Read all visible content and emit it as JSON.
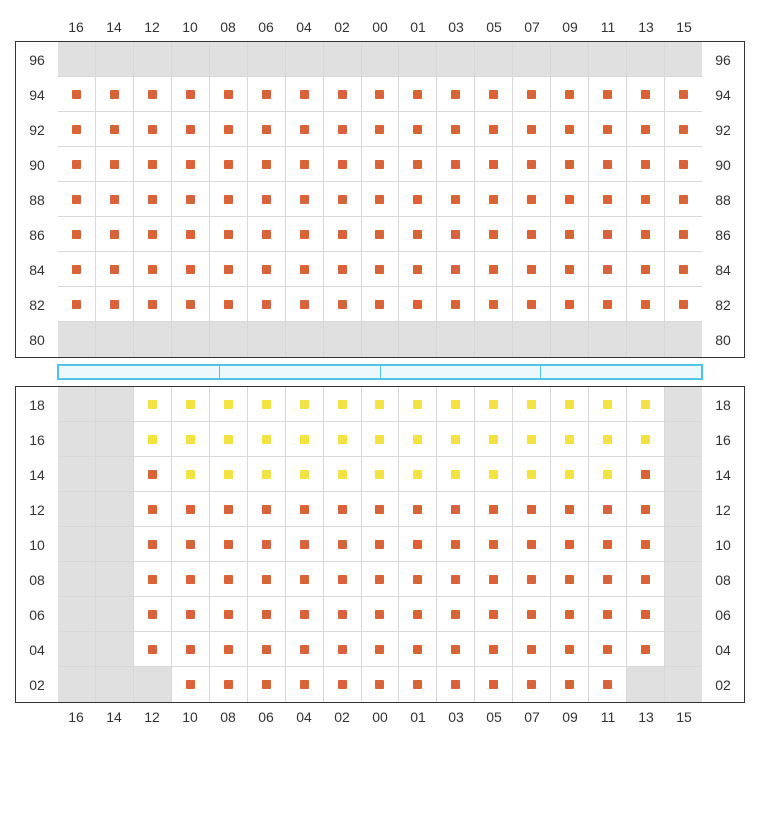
{
  "type": "seating-chart",
  "columns": [
    "16",
    "14",
    "12",
    "10",
    "08",
    "06",
    "04",
    "02",
    "00",
    "01",
    "03",
    "05",
    "07",
    "09",
    "11",
    "13",
    "15"
  ],
  "colors": {
    "orange": "#d86339",
    "yellow": "#f2e343",
    "inactive_bg": "#e0e0e0",
    "active_bg": "#ffffff",
    "grid_line": "#d8d8d8",
    "border": "#333333",
    "divider_border": "#4fc3e8",
    "divider_fill": "#ecf8fc",
    "label_color": "#333333"
  },
  "upper_section": {
    "row_labels": [
      "96",
      "94",
      "92",
      "90",
      "88",
      "86",
      "84",
      "82",
      "80"
    ],
    "rows": [
      {
        "label": "96",
        "cells": [
          "i",
          "i",
          "i",
          "i",
          "i",
          "i",
          "i",
          "i",
          "i",
          "i",
          "i",
          "i",
          "i",
          "i",
          "i",
          "i",
          "i"
        ]
      },
      {
        "label": "94",
        "cells": [
          "o",
          "o",
          "o",
          "o",
          "o",
          "o",
          "o",
          "o",
          "o",
          "o",
          "o",
          "o",
          "o",
          "o",
          "o",
          "o",
          "o"
        ]
      },
      {
        "label": "92",
        "cells": [
          "o",
          "o",
          "o",
          "o",
          "o",
          "o",
          "o",
          "o",
          "o",
          "o",
          "o",
          "o",
          "o",
          "o",
          "o",
          "o",
          "o"
        ]
      },
      {
        "label": "90",
        "cells": [
          "o",
          "o",
          "o",
          "o",
          "o",
          "o",
          "o",
          "o",
          "o",
          "o",
          "o",
          "o",
          "o",
          "o",
          "o",
          "o",
          "o"
        ]
      },
      {
        "label": "88",
        "cells": [
          "o",
          "o",
          "o",
          "o",
          "o",
          "o",
          "o",
          "o",
          "o",
          "o",
          "o",
          "o",
          "o",
          "o",
          "o",
          "o",
          "o"
        ]
      },
      {
        "label": "86",
        "cells": [
          "o",
          "o",
          "o",
          "o",
          "o",
          "o",
          "o",
          "o",
          "o",
          "o",
          "o",
          "o",
          "o",
          "o",
          "o",
          "o",
          "o"
        ]
      },
      {
        "label": "84",
        "cells": [
          "o",
          "o",
          "o",
          "o",
          "o",
          "o",
          "o",
          "o",
          "o",
          "o",
          "o",
          "o",
          "o",
          "o",
          "o",
          "o",
          "o"
        ]
      },
      {
        "label": "82",
        "cells": [
          "o",
          "o",
          "o",
          "o",
          "o",
          "o",
          "o",
          "o",
          "o",
          "o",
          "o",
          "o",
          "o",
          "o",
          "o",
          "o",
          "o"
        ]
      },
      {
        "label": "80",
        "cells": [
          "i",
          "i",
          "i",
          "i",
          "i",
          "i",
          "i",
          "i",
          "i",
          "i",
          "i",
          "i",
          "i",
          "i",
          "i",
          "i",
          "i"
        ]
      }
    ]
  },
  "divider_segments": 4,
  "lower_section": {
    "row_labels": [
      "18",
      "16",
      "14",
      "12",
      "10",
      "08",
      "06",
      "04",
      "02"
    ],
    "rows": [
      {
        "label": "18",
        "cells": [
          "i",
          "i",
          "y",
          "y",
          "y",
          "y",
          "y",
          "y",
          "y",
          "y",
          "y",
          "y",
          "y",
          "y",
          "y",
          "y",
          "i"
        ]
      },
      {
        "label": "16",
        "cells": [
          "i",
          "i",
          "y",
          "y",
          "y",
          "y",
          "y",
          "y",
          "y",
          "y",
          "y",
          "y",
          "y",
          "y",
          "y",
          "y",
          "i"
        ]
      },
      {
        "label": "14",
        "cells": [
          "i",
          "i",
          "o",
          "y",
          "y",
          "y",
          "y",
          "y",
          "y",
          "y",
          "y",
          "y",
          "y",
          "y",
          "y",
          "o",
          "i"
        ]
      },
      {
        "label": "12",
        "cells": [
          "i",
          "i",
          "o",
          "o",
          "o",
          "o",
          "o",
          "o",
          "o",
          "o",
          "o",
          "o",
          "o",
          "o",
          "o",
          "o",
          "i"
        ]
      },
      {
        "label": "10",
        "cells": [
          "i",
          "i",
          "o",
          "o",
          "o",
          "o",
          "o",
          "o",
          "o",
          "o",
          "o",
          "o",
          "o",
          "o",
          "o",
          "o",
          "i"
        ]
      },
      {
        "label": "08",
        "cells": [
          "i",
          "i",
          "o",
          "o",
          "o",
          "o",
          "o",
          "o",
          "o",
          "o",
          "o",
          "o",
          "o",
          "o",
          "o",
          "o",
          "i"
        ]
      },
      {
        "label": "06",
        "cells": [
          "i",
          "i",
          "o",
          "o",
          "o",
          "o",
          "o",
          "o",
          "o",
          "o",
          "o",
          "o",
          "o",
          "o",
          "o",
          "o",
          "i"
        ]
      },
      {
        "label": "04",
        "cells": [
          "i",
          "i",
          "o",
          "o",
          "o",
          "o",
          "o",
          "o",
          "o",
          "o",
          "o",
          "o",
          "o",
          "o",
          "o",
          "o",
          "i"
        ]
      },
      {
        "label": "02",
        "cells": [
          "i",
          "i",
          "i",
          "o",
          "o",
          "o",
          "o",
          "o",
          "o",
          "o",
          "o",
          "o",
          "o",
          "o",
          "o",
          "i",
          "i"
        ]
      }
    ]
  }
}
